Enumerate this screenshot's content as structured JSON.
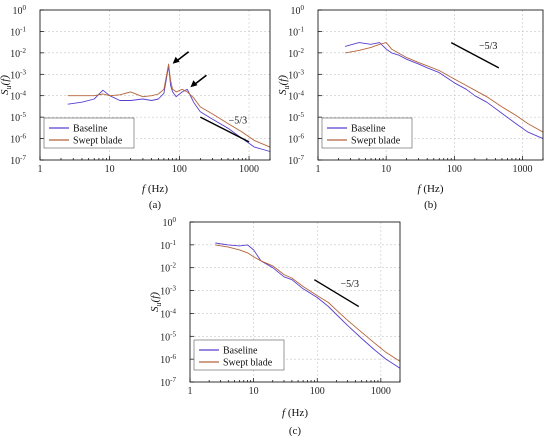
{
  "figure": {
    "series_colors": {
      "Baseline": "#5b3fd0",
      "Swept blade": "#b5653a"
    },
    "slope_line_color": "#000000"
  },
  "chart_data": [
    {
      "type": "line",
      "panel_label": "(a)",
      "xlabel": "f (Hz)",
      "ylabel": "Su(f)",
      "xscale": "log",
      "yscale": "log",
      "xlim": [
        1,
        2000
      ],
      "ylim": [
        1e-07,
        1
      ],
      "xticks": [
        "1",
        "10",
        "100",
        "1000"
      ],
      "yticks": [
        "10^0",
        "10^-1",
        "10^-2",
        "10^-3",
        "10^-4",
        "10^-5",
        "10^-6",
        "10^-7"
      ],
      "grid": true,
      "legend": {
        "placement": "bottom-left",
        "entries": [
          "Baseline",
          "Swept blade"
        ]
      },
      "series": [
        {
          "name": "Baseline",
          "x": [
            2.5,
            4,
            6,
            8,
            10,
            14,
            20,
            30,
            40,
            50,
            60,
            70,
            75,
            80,
            90,
            110,
            130,
            160,
            200,
            300,
            500,
            800,
            1200,
            2000
          ],
          "y": [
            4e-05,
            5e-05,
            7e-05,
            0.00018,
            0.0001,
            6e-05,
            6e-05,
            7e-05,
            6e-05,
            7e-05,
            0.00013,
            0.0025,
            0.0003,
            0.00015,
            9e-05,
            0.00015,
            0.0002,
            5e-05,
            1.8e-05,
            8e-06,
            3e-06,
            1e-06,
            4e-07,
            2.5e-07
          ]
        },
        {
          "name": "Swept blade",
          "x": [
            2.5,
            4,
            6,
            8,
            10,
            14,
            20,
            30,
            40,
            50,
            60,
            70,
            75,
            80,
            90,
            110,
            130,
            160,
            200,
            300,
            500,
            800,
            1200,
            2000
          ],
          "y": [
            0.0001,
            0.0001,
            0.0001,
            0.00012,
            0.0001,
            0.00011,
            0.00015,
            9e-05,
            0.0001,
            0.00012,
            0.0002,
            0.003,
            0.0005,
            0.0002,
            0.00015,
            0.0002,
            0.00015,
            8e-05,
            3e-05,
            1.4e-05,
            5e-06,
            2e-06,
            8e-07,
            4e-07
          ]
        }
      ],
      "slope": {
        "label": "−5/3",
        "x": [
          200,
          1000
        ],
        "y": [
          1e-05,
          7e-07
        ]
      },
      "annotations": [
        {
          "type": "arrow",
          "points_to": [
            75,
            0.0025
          ]
        },
        {
          "type": "arrow",
          "points_to": [
            135,
            0.0002
          ]
        }
      ]
    },
    {
      "type": "line",
      "panel_label": "(b)",
      "xlabel": "f (Hz)",
      "ylabel": "Su(f)",
      "xscale": "log",
      "yscale": "log",
      "xlim": [
        1,
        2000
      ],
      "ylim": [
        1e-07,
        1
      ],
      "xticks": [
        "1",
        "10",
        "100",
        "1000"
      ],
      "yticks": [
        "10^0",
        "10^-1",
        "10^-2",
        "10^-3",
        "10^-4",
        "10^-5",
        "10^-6",
        "10^-7"
      ],
      "grid": true,
      "legend": {
        "placement": "bottom-left",
        "entries": [
          "Baseline",
          "Swept blade"
        ]
      },
      "series": [
        {
          "name": "Baseline",
          "x": [
            2.5,
            4,
            6,
            8,
            10,
            12,
            15,
            20,
            30,
            40,
            60,
            100,
            150,
            200,
            300,
            500,
            800,
            1200,
            2000
          ],
          "y": [
            0.02,
            0.03,
            0.025,
            0.03,
            0.015,
            0.01,
            0.008,
            0.005,
            0.003,
            0.002,
            0.0012,
            0.0004,
            0.0002,
            0.0001,
            5e-05,
            1.5e-05,
            5e-06,
            2e-06,
            1e-06
          ]
        },
        {
          "name": "Swept blade",
          "x": [
            2.5,
            4,
            6,
            8,
            10,
            12,
            15,
            20,
            30,
            40,
            60,
            100,
            150,
            200,
            300,
            500,
            800,
            1200,
            2000
          ],
          "y": [
            0.01,
            0.013,
            0.018,
            0.025,
            0.03,
            0.015,
            0.01,
            0.006,
            0.0035,
            0.0025,
            0.0015,
            0.0006,
            0.0003,
            0.00018,
            9e-05,
            3e-05,
            1.2e-05,
            5e-06,
            2e-06
          ]
        }
      ],
      "slope": {
        "label": "−5/3",
        "x": [
          90,
          450
        ],
        "y": [
          0.03,
          0.002
        ]
      }
    },
    {
      "type": "line",
      "panel_label": "(c)",
      "xlabel": "f (Hz)",
      "ylabel": "Su(f)",
      "xscale": "log",
      "yscale": "log",
      "xlim": [
        1,
        2000
      ],
      "ylim": [
        1e-07,
        1
      ],
      "xticks": [
        "1",
        "10",
        "100",
        "1000"
      ],
      "yticks": [
        "10^0",
        "10^-1",
        "10^-2",
        "10^-3",
        "10^-4",
        "10^-5",
        "10^-6",
        "10^-7"
      ],
      "grid": true,
      "legend": {
        "placement": "bottom-left",
        "entries": [
          "Baseline",
          "Swept blade"
        ]
      },
      "series": [
        {
          "name": "Baseline",
          "x": [
            2.5,
            4,
            6,
            8,
            10,
            13,
            20,
            30,
            40,
            60,
            100,
            150,
            200,
            300,
            500,
            800,
            1200,
            2000
          ],
          "y": [
            0.12,
            0.1,
            0.09,
            0.1,
            0.06,
            0.02,
            0.01,
            0.004,
            0.003,
            0.0012,
            0.0005,
            0.0002,
            9e-05,
            3e-05,
            8e-06,
            2.5e-06,
            1e-06,
            4e-07
          ]
        },
        {
          "name": "Swept blade",
          "x": [
            2.5,
            4,
            6,
            8,
            10,
            13,
            20,
            30,
            40,
            60,
            100,
            150,
            200,
            300,
            500,
            800,
            1200,
            2000
          ],
          "y": [
            0.1,
            0.08,
            0.06,
            0.045,
            0.03,
            0.02,
            0.012,
            0.005,
            0.0035,
            0.0015,
            0.0006,
            0.0003,
            0.00014,
            5e-05,
            1.5e-05,
            5e-06,
            2e-06,
            8e-07
          ]
        }
      ],
      "slope": {
        "label": "−5/3",
        "x": [
          90,
          450
        ],
        "y": [
          0.003,
          0.0002
        ]
      }
    }
  ]
}
